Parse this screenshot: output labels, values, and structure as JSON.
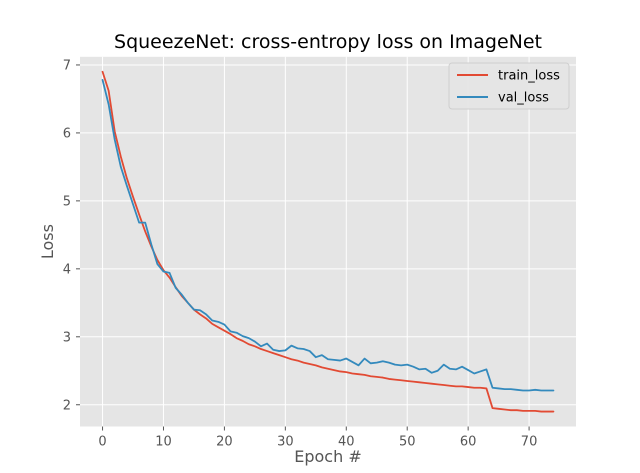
{
  "chart_data": {
    "type": "line",
    "title": "SqueezeNet: cross-entropy loss on ImageNet",
    "xlabel": "Epoch #",
    "ylabel": "Loss",
    "xlim": [
      -3.7,
      77.7
    ],
    "ylim": [
      1.68,
      7.12
    ],
    "xticks": [
      "0",
      "10",
      "20",
      "30",
      "40",
      "50",
      "60",
      "70"
    ],
    "yticks": [
      "2",
      "3",
      "4",
      "5",
      "6",
      "7"
    ],
    "grid": true,
    "legend_position": "top-right",
    "background_color": "#e5e5e5",
    "series": [
      {
        "name": "train_loss",
        "color": "#e24a33",
        "x": [
          0,
          1,
          2,
          3,
          4,
          5,
          6,
          7,
          8,
          9,
          10,
          11,
          12,
          13,
          14,
          15,
          16,
          17,
          18,
          19,
          20,
          21,
          22,
          23,
          24,
          25,
          26,
          27,
          28,
          29,
          30,
          31,
          32,
          33,
          34,
          35,
          36,
          37,
          38,
          39,
          40,
          41,
          42,
          43,
          44,
          45,
          46,
          47,
          48,
          49,
          50,
          51,
          52,
          53,
          54,
          55,
          56,
          57,
          58,
          59,
          60,
          61,
          62,
          63,
          64,
          65,
          66,
          67,
          68,
          69,
          70,
          71,
          72,
          73,
          74
        ],
        "values": [
          6.9,
          6.62,
          6.02,
          5.65,
          5.33,
          5.06,
          4.8,
          4.55,
          4.33,
          4.13,
          3.98,
          3.87,
          3.73,
          3.6,
          3.5,
          3.4,
          3.33,
          3.27,
          3.19,
          3.14,
          3.09,
          3.04,
          2.98,
          2.94,
          2.89,
          2.86,
          2.82,
          2.79,
          2.76,
          2.73,
          2.7,
          2.67,
          2.65,
          2.62,
          2.6,
          2.58,
          2.55,
          2.53,
          2.51,
          2.49,
          2.48,
          2.46,
          2.45,
          2.44,
          2.42,
          2.41,
          2.4,
          2.38,
          2.37,
          2.36,
          2.35,
          2.34,
          2.33,
          2.32,
          2.31,
          2.3,
          2.29,
          2.28,
          2.27,
          2.27,
          2.26,
          2.25,
          2.25,
          2.24,
          1.95,
          1.94,
          1.93,
          1.92,
          1.92,
          1.91,
          1.91,
          1.91,
          1.9,
          1.9,
          1.9
        ]
      },
      {
        "name": "val_loss",
        "color": "#348abd",
        "x": [
          0,
          1,
          2,
          3,
          4,
          5,
          6,
          7,
          8,
          9,
          10,
          11,
          12,
          13,
          14,
          15,
          16,
          17,
          18,
          19,
          20,
          21,
          22,
          23,
          24,
          25,
          26,
          27,
          28,
          29,
          30,
          31,
          32,
          33,
          34,
          35,
          36,
          37,
          38,
          39,
          40,
          41,
          42,
          43,
          44,
          45,
          46,
          47,
          48,
          49,
          50,
          51,
          52,
          53,
          54,
          55,
          56,
          57,
          58,
          59,
          60,
          61,
          62,
          63,
          64,
          65,
          66,
          67,
          68,
          69,
          70,
          71,
          72,
          73,
          74
        ],
        "values": [
          6.78,
          6.42,
          5.9,
          5.5,
          5.22,
          4.95,
          4.68,
          4.68,
          4.36,
          4.07,
          3.96,
          3.94,
          3.72,
          3.62,
          3.5,
          3.4,
          3.39,
          3.33,
          3.24,
          3.22,
          3.18,
          3.08,
          3.06,
          3.01,
          2.98,
          2.93,
          2.86,
          2.9,
          2.81,
          2.79,
          2.8,
          2.87,
          2.83,
          2.82,
          2.79,
          2.7,
          2.73,
          2.67,
          2.66,
          2.65,
          2.68,
          2.63,
          2.58,
          2.68,
          2.61,
          2.62,
          2.64,
          2.62,
          2.59,
          2.58,
          2.59,
          2.56,
          2.52,
          2.53,
          2.47,
          2.5,
          2.59,
          2.53,
          2.52,
          2.56,
          2.51,
          2.46,
          2.49,
          2.52,
          2.25,
          2.24,
          2.23,
          2.23,
          2.22,
          2.21,
          2.21,
          2.22,
          2.21,
          2.21,
          2.21
        ]
      }
    ]
  }
}
